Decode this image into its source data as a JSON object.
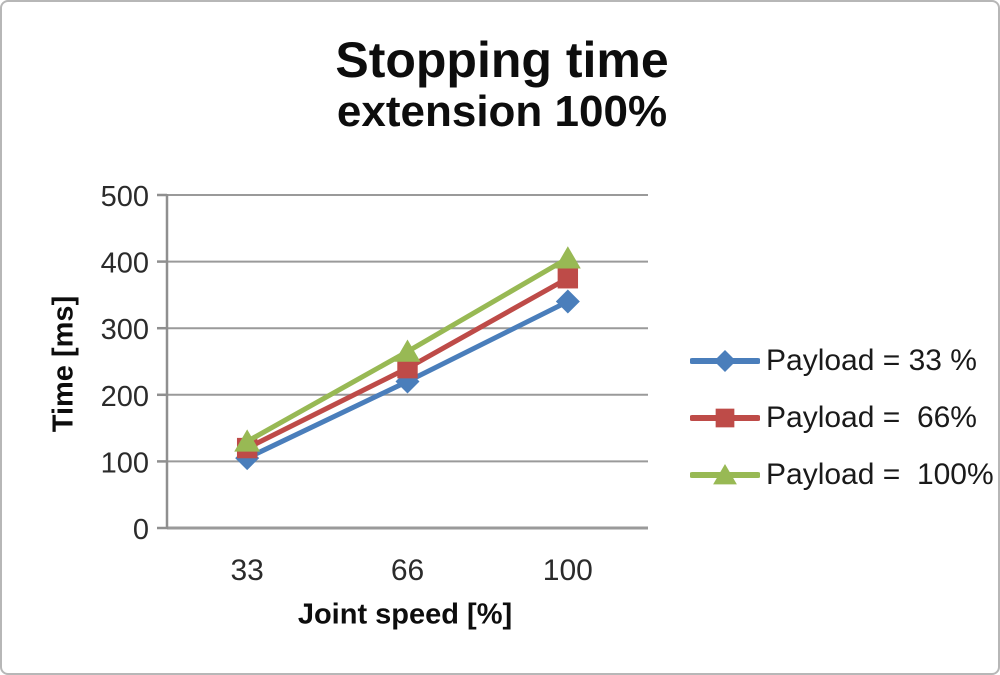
{
  "frame": {
    "background": "#ffffff",
    "border_color": "#b7b7b7"
  },
  "title": {
    "line1": "Stopping time",
    "line2": "extension 100%"
  },
  "chart_data": {
    "type": "line",
    "title": "Stopping time extension 100%",
    "categories": [
      "33",
      "66",
      "100"
    ],
    "series": [
      {
        "name": "Payload = 33 %",
        "color": "#4A7EBB",
        "marker": "diamond",
        "values": [
          105,
          220,
          340
        ]
      },
      {
        "name": "Payload =  66%",
        "color": "#BE4B48",
        "marker": "square",
        "values": [
          120,
          240,
          375
        ]
      },
      {
        "name": "Payload =  100%",
        "color": "#98B954",
        "marker": "triangle",
        "values": [
          130,
          265,
          405
        ]
      }
    ],
    "xlabel": "Joint speed [%]",
    "ylabel": "Time [ms]",
    "ylim": [
      0,
      500
    ],
    "ytick_step": 100,
    "grid": true,
    "legend_position": "right",
    "styles": {
      "gridline_color": "#9a9a9a",
      "axis_color": "#8f8f8f",
      "tick_label_color": "#2b2b2b"
    }
  }
}
